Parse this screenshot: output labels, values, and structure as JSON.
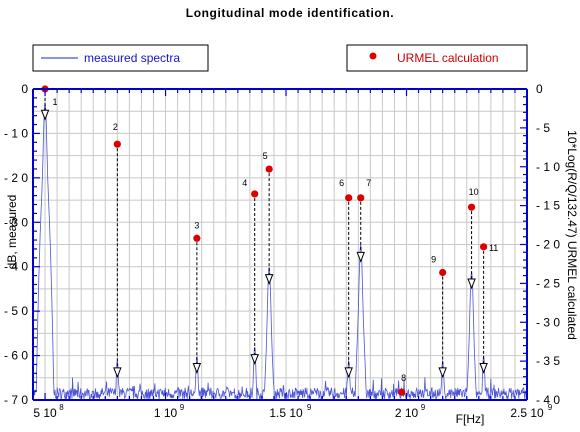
{
  "colors": {
    "spectrum": "#4a55d8",
    "axis": "#0000c8",
    "grid": "#c8c8c8",
    "points": "#dd0000",
    "arrows": "#000000"
  },
  "chart_data": {
    "type": "line+scatter",
    "title": "Longitudinal mode identification.",
    "xlabel": "F[Hz]",
    "ylabel_left": "dB, measured",
    "ylabel_right": "10*Log(R/Q/132.47) URMEL calculated",
    "xlim": [
      450000000,
      2500000000
    ],
    "ylim_left": [
      -70,
      0
    ],
    "ylim_right": [
      -40,
      0
    ],
    "grid": true,
    "x_ticks": [
      {
        "value": 500000000,
        "mant": "5",
        "exp": "8"
      },
      {
        "value": 1000000000,
        "mant": "1",
        "exp": "9"
      },
      {
        "value": 1500000000,
        "mant": "1.5",
        "exp": "9"
      },
      {
        "value": 2000000000,
        "mant": "2",
        "exp": "9"
      },
      {
        "value": 2500000000,
        "mant": "2.5",
        "exp": "9"
      }
    ],
    "left_ticks": [
      "0",
      "- 1 0",
      "- 2 0",
      "- 3 0",
      "- 4 0",
      "- 5 0",
      "- 6 0",
      "- 7 0"
    ],
    "right_ticks": [
      "0",
      "- 5",
      "- 1 0",
      "- 1 5",
      "- 2 0",
      "- 2 5",
      "- 3 0",
      "- 3 5",
      "- 4 0"
    ],
    "legend": {
      "measured": "measured  spectra",
      "calculated": "URMEL  calculation"
    },
    "series": [
      {
        "name": "measured spectra",
        "baseline_db": -68.5,
        "peaks": [
          {
            "x": 500000000,
            "y": -5
          },
          {
            "x": 800000000,
            "y": -63
          },
          {
            "x": 1130000000,
            "y": -62
          },
          {
            "x": 1370000000,
            "y": -60
          },
          {
            "x": 1430000000,
            "y": -42
          },
          {
            "x": 1760000000,
            "y": -63
          },
          {
            "x": 1810000000,
            "y": -37
          },
          {
            "x": 2150000000,
            "y": -63
          },
          {
            "x": 2270000000,
            "y": -43
          },
          {
            "x": 2320000000,
            "y": -62
          }
        ]
      },
      {
        "name": "URMEL calculation",
        "modes": [
          {
            "label": "1",
            "x": 500000000,
            "y": 0,
            "arrow_to_db": -5
          },
          {
            "label": "2",
            "x": 800000000,
            "y": -7.1,
            "arrow_to_db": -63
          },
          {
            "label": "3",
            "x": 1130000000,
            "y": -19.2,
            "arrow_to_db": -62
          },
          {
            "label": "4",
            "x": 1370000000,
            "y": -13.5,
            "arrow_to_db": -60
          },
          {
            "label": "5",
            "x": 1430000000,
            "y": -10.3,
            "arrow_to_db": -42
          },
          {
            "label": "6",
            "x": 1760000000,
            "y": -14,
            "arrow_to_db": -63
          },
          {
            "label": "7",
            "x": 1810000000,
            "y": -14,
            "arrow_to_db": -37
          },
          {
            "label": "8",
            "x": 1980000000,
            "y": -39,
            "arrow_to_db": null
          },
          {
            "label": "9",
            "x": 2150000000,
            "y": -23.6,
            "arrow_to_db": -63
          },
          {
            "label": "10",
            "x": 2270000000,
            "y": -15.2,
            "arrow_to_db": -43
          },
          {
            "label": "11",
            "x": 2320000000,
            "y": -20.3,
            "arrow_to_db": -62
          }
        ]
      }
    ]
  }
}
